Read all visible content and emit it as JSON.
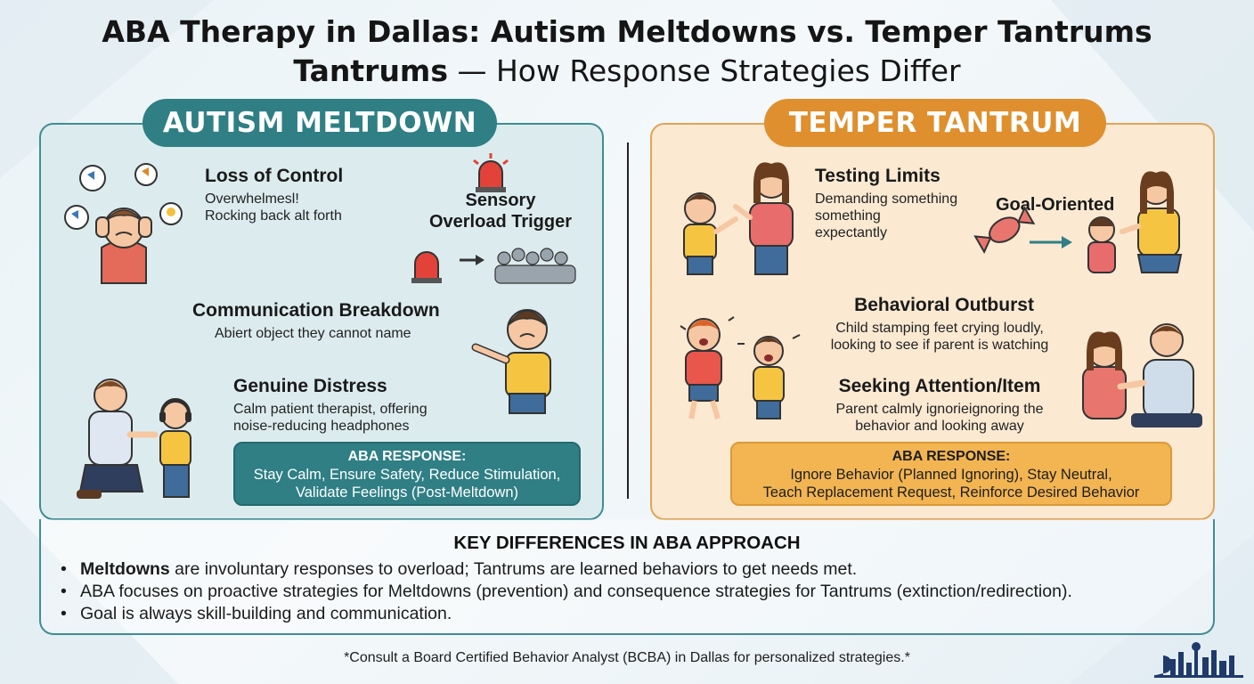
{
  "title": {
    "line1": "ABA Therapy in Dallas: Autism Meltdowns vs. Temper Tantrums",
    "line2_bold": "Tantrums",
    "line2_rest": " — How Response Strategies Differ"
  },
  "meltdown": {
    "label": "AUTISM MELTDOWN",
    "loss_of_control": {
      "heading": "Loss of Control",
      "line1": "Overwhelmesl!",
      "line2": "Rocking back alt forth"
    },
    "sensory": {
      "line1": "Sensory",
      "line2": "Overload Trigger"
    },
    "communication": {
      "heading": "Communication Breakdown",
      "text": "Abiert object they cannot name"
    },
    "distress": {
      "heading": "Genuine Distress",
      "line1": "Calm patient therapist, offering",
      "line2": "noise-reducing headphones"
    },
    "aba": {
      "head": "ABA RESPONSE:",
      "line1": "Stay Calm, Ensure Safety, Reduce Stimulation,",
      "line2": "Validate Feelings (Post-Meltdown)"
    }
  },
  "tantrum": {
    "label": "TEMPER TANTRUM",
    "testing": {
      "heading": "Testing Limits",
      "line1": "Demanding something",
      "line2": "something",
      "line3": "expectantly"
    },
    "goal": "Goal-Oriented",
    "outburst": {
      "heading": "Behavioral Outburst",
      "line1": "Child stamping feet crying loudly,",
      "line2": "looking to see if parent is watching"
    },
    "seeking": {
      "heading": "Seeking Attention/Item",
      "line1": "Parent calmly ignorieignoring the",
      "line2": "behavior and looking away"
    },
    "aba": {
      "head": "ABA RESPONSE:",
      "line1": "Ignore Behavior (Planned Ignoring), Stay Neutral,",
      "line2": "Teach Replacement Request, Reinforce Desired Behavior"
    }
  },
  "key": {
    "title": "KEY DIFFERENCES IN ABA APPROACH",
    "b1_bold": "Meltdowns",
    "b1_rest": " are involuntary responses to overload; Tantrums are learned behaviors to get needs met.",
    "b2": "ABA focuses on proactive strategies for Meltdowns (prevention) and consequence strategies for Tantrums (extinction/redirection).",
    "b3": "Goal is always skill-building and communication."
  },
  "footnote": "*Consult a Board Certified Behavior Analyst (BCBA) in Dallas for personalized strategies.*",
  "colors": {
    "teal": "#2f7f85",
    "orange": "#df8f2e",
    "teal_panel": "#dcecee",
    "orange_panel": "#fbe9d2"
  }
}
